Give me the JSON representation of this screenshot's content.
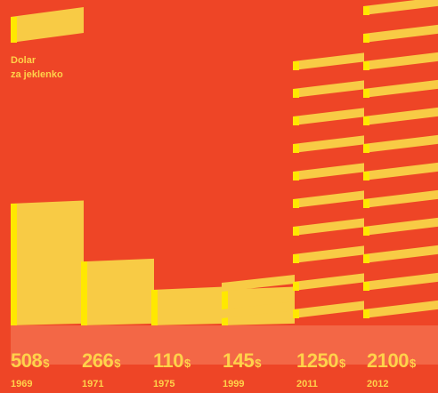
{
  "legend": {
    "label_line1": "Dolar",
    "label_line2": "za jeklenko",
    "color": "#ffd24a"
  },
  "chart_data": {
    "type": "bar",
    "categories": [
      "1969",
      "1971",
      "1975",
      "1999",
      "2011",
      "2012"
    ],
    "values": [
      508,
      266,
      110,
      145,
      1250,
      2100
    ],
    "value_labels": [
      "508",
      "266",
      "110",
      "145",
      "1250",
      "2100"
    ],
    "unit": "$",
    "bar_color": "#f8cb45",
    "bar_edge_color": "#ffe800",
    "background_color": "#ee4526",
    "title": "",
    "xlabel": "",
    "ylabel": "",
    "legend_position": "top-left",
    "grid": false
  }
}
